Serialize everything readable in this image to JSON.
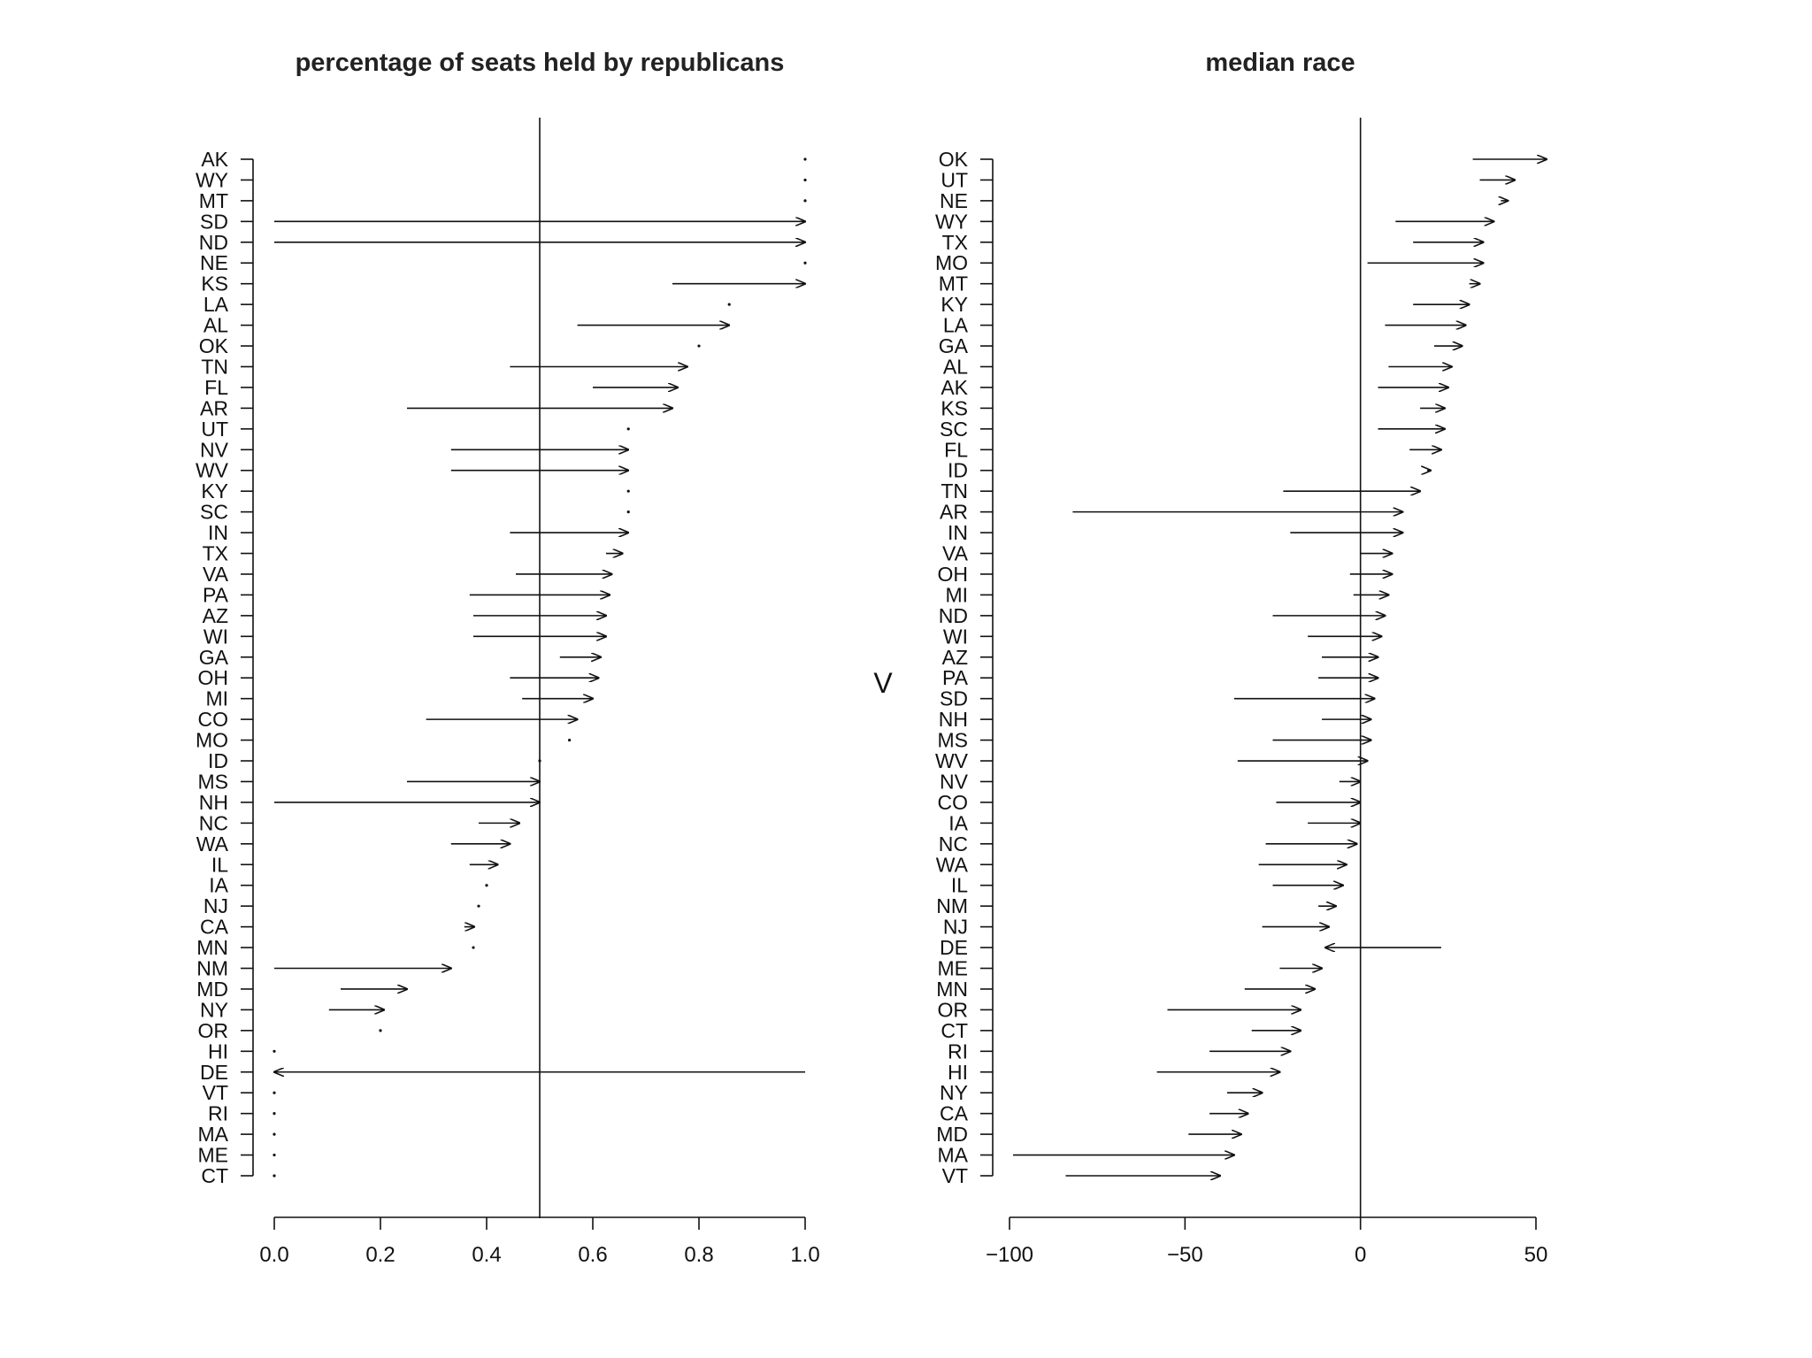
{
  "chart_data": [
    {
      "type": "arrow-dotplot",
      "title": "percentage of seats held by republicans",
      "xlim": [
        0,
        1
      ],
      "xticks": [
        0,
        0.2,
        0.4,
        0.6,
        0.8,
        1
      ],
      "xtick_labels": [
        "0.0",
        "0.2",
        "0.4",
        "0.6",
        "0.8",
        "1.0"
      ],
      "reference_line": 0.5,
      "rows": [
        {
          "state": "AK",
          "from": 1.0,
          "to": 1.0
        },
        {
          "state": "WY",
          "from": 1.0,
          "to": 1.0
        },
        {
          "state": "MT",
          "from": 1.0,
          "to": 1.0
        },
        {
          "state": "SD",
          "from": 0.0,
          "to": 1.0
        },
        {
          "state": "ND",
          "from": 0.0,
          "to": 1.0
        },
        {
          "state": "NE",
          "from": 1.0,
          "to": 1.0
        },
        {
          "state": "KS",
          "from": 0.75,
          "to": 1.0
        },
        {
          "state": "LA",
          "from": 0.857,
          "to": 0.857
        },
        {
          "state": "AL",
          "from": 0.571,
          "to": 0.857
        },
        {
          "state": "OK",
          "from": 0.8,
          "to": 0.8
        },
        {
          "state": "TN",
          "from": 0.444,
          "to": 0.778
        },
        {
          "state": "FL",
          "from": 0.6,
          "to": 0.76
        },
        {
          "state": "AR",
          "from": 0.25,
          "to": 0.75
        },
        {
          "state": "UT",
          "from": 0.667,
          "to": 0.667
        },
        {
          "state": "NV",
          "from": 0.333,
          "to": 0.667
        },
        {
          "state": "WV",
          "from": 0.333,
          "to": 0.667
        },
        {
          "state": "KY",
          "from": 0.667,
          "to": 0.667
        },
        {
          "state": "SC",
          "from": 0.667,
          "to": 0.667
        },
        {
          "state": "IN",
          "from": 0.444,
          "to": 0.667
        },
        {
          "state": "TX",
          "from": 0.625,
          "to": 0.656
        },
        {
          "state": "VA",
          "from": 0.455,
          "to": 0.636
        },
        {
          "state": "PA",
          "from": 0.368,
          "to": 0.632
        },
        {
          "state": "AZ",
          "from": 0.375,
          "to": 0.625
        },
        {
          "state": "WI",
          "from": 0.375,
          "to": 0.625
        },
        {
          "state": "GA",
          "from": 0.538,
          "to": 0.615
        },
        {
          "state": "OH",
          "from": 0.444,
          "to": 0.611
        },
        {
          "state": "MI",
          "from": 0.467,
          "to": 0.6
        },
        {
          "state": "CO",
          "from": 0.286,
          "to": 0.571
        },
        {
          "state": "MO",
          "from": 0.556,
          "to": 0.556
        },
        {
          "state": "ID",
          "from": 0.5,
          "to": 0.5
        },
        {
          "state": "MS",
          "from": 0.25,
          "to": 0.5
        },
        {
          "state": "NH",
          "from": 0.0,
          "to": 0.5
        },
        {
          "state": "NC",
          "from": 0.385,
          "to": 0.462
        },
        {
          "state": "WA",
          "from": 0.333,
          "to": 0.444
        },
        {
          "state": "IL",
          "from": 0.368,
          "to": 0.421
        },
        {
          "state": "IA",
          "from": 0.4,
          "to": 0.4
        },
        {
          "state": "NJ",
          "from": 0.385,
          "to": 0.385
        },
        {
          "state": "CA",
          "from": 0.358,
          "to": 0.377
        },
        {
          "state": "MN",
          "from": 0.375,
          "to": 0.375
        },
        {
          "state": "NM",
          "from": 0.0,
          "to": 0.333
        },
        {
          "state": "MD",
          "from": 0.125,
          "to": 0.25
        },
        {
          "state": "NY",
          "from": 0.103,
          "to": 0.207
        },
        {
          "state": "OR",
          "from": 0.2,
          "to": 0.2
        },
        {
          "state": "HI",
          "from": 0.0,
          "to": 0.0
        },
        {
          "state": "DE",
          "from": 1.0,
          "to": 0.0
        },
        {
          "state": "VT",
          "from": 0.0,
          "to": 0.0
        },
        {
          "state": "RI",
          "from": 0.0,
          "to": 0.0
        },
        {
          "state": "MA",
          "from": 0.0,
          "to": 0.0
        },
        {
          "state": "ME",
          "from": 0.0,
          "to": 0.0
        },
        {
          "state": "CT",
          "from": 0.0,
          "to": 0.0
        }
      ]
    },
    {
      "type": "arrow-dotplot",
      "title": "median race",
      "xlim": [
        -100,
        50
      ],
      "xticks": [
        -100,
        -50,
        0,
        50
      ],
      "xtick_labels": [
        "−100",
        "−50",
        "0",
        "50"
      ],
      "reference_line": 0,
      "rows": [
        {
          "state": "OK",
          "from": 32,
          "to": 53
        },
        {
          "state": "UT",
          "from": 34,
          "to": 44
        },
        {
          "state": "NE",
          "from": 40,
          "to": 42
        },
        {
          "state": "WY",
          "from": 10,
          "to": 38
        },
        {
          "state": "TX",
          "from": 15,
          "to": 35
        },
        {
          "state": "MO",
          "from": 2,
          "to": 35
        },
        {
          "state": "MT",
          "from": 31,
          "to": 34
        },
        {
          "state": "KY",
          "from": 15,
          "to": 31
        },
        {
          "state": "LA",
          "from": 7,
          "to": 30
        },
        {
          "state": "GA",
          "from": 21,
          "to": 29
        },
        {
          "state": "AL",
          "from": 8,
          "to": 26
        },
        {
          "state": "AK",
          "from": 5,
          "to": 25
        },
        {
          "state": "KS",
          "from": 17,
          "to": 24
        },
        {
          "state": "SC",
          "from": 5,
          "to": 24
        },
        {
          "state": "FL",
          "from": 14,
          "to": 23
        },
        {
          "state": "ID",
          "from": 19,
          "to": 20
        },
        {
          "state": "TN",
          "from": -22,
          "to": 17
        },
        {
          "state": "AR",
          "from": -82,
          "to": 12
        },
        {
          "state": "IN",
          "from": -20,
          "to": 12
        },
        {
          "state": "VA",
          "from": 0,
          "to": 9
        },
        {
          "state": "OH",
          "from": -3,
          "to": 9
        },
        {
          "state": "MI",
          "from": -2,
          "to": 8
        },
        {
          "state": "ND",
          "from": -25,
          "to": 7
        },
        {
          "state": "WI",
          "from": -15,
          "to": 6
        },
        {
          "state": "AZ",
          "from": -11,
          "to": 5
        },
        {
          "state": "PA",
          "from": -12,
          "to": 5
        },
        {
          "state": "SD",
          "from": -36,
          "to": 4
        },
        {
          "state": "NH",
          "from": -11,
          "to": 3
        },
        {
          "state": "MS",
          "from": -25,
          "to": 3
        },
        {
          "state": "WV",
          "from": -35,
          "to": 2
        },
        {
          "state": "NV",
          "from": -6,
          "to": 0
        },
        {
          "state": "CO",
          "from": -24,
          "to": 0
        },
        {
          "state": "IA",
          "from": -15,
          "to": 0
        },
        {
          "state": "NC",
          "from": -27,
          "to": -1
        },
        {
          "state": "WA",
          "from": -29,
          "to": -4
        },
        {
          "state": "IL",
          "from": -25,
          "to": -5
        },
        {
          "state": "NM",
          "from": -12,
          "to": -7
        },
        {
          "state": "NJ",
          "from": -28,
          "to": -9
        },
        {
          "state": "DE",
          "from": 23,
          "to": -10
        },
        {
          "state": "ME",
          "from": -23,
          "to": -11
        },
        {
          "state": "MN",
          "from": -33,
          "to": -13
        },
        {
          "state": "OR",
          "from": -55,
          "to": -17
        },
        {
          "state": "CT",
          "from": -31,
          "to": -17
        },
        {
          "state": "RI",
          "from": -43,
          "to": -20
        },
        {
          "state": "HI",
          "from": -58,
          "to": -23
        },
        {
          "state": "NY",
          "from": -38,
          "to": -28
        },
        {
          "state": "CA",
          "from": -43,
          "to": -32
        },
        {
          "state": "MD",
          "from": -49,
          "to": -34
        },
        {
          "state": "MA",
          "from": -99,
          "to": -36
        },
        {
          "state": "VT",
          "from": -84,
          "to": -40
        }
      ]
    }
  ],
  "middle_label": "V"
}
